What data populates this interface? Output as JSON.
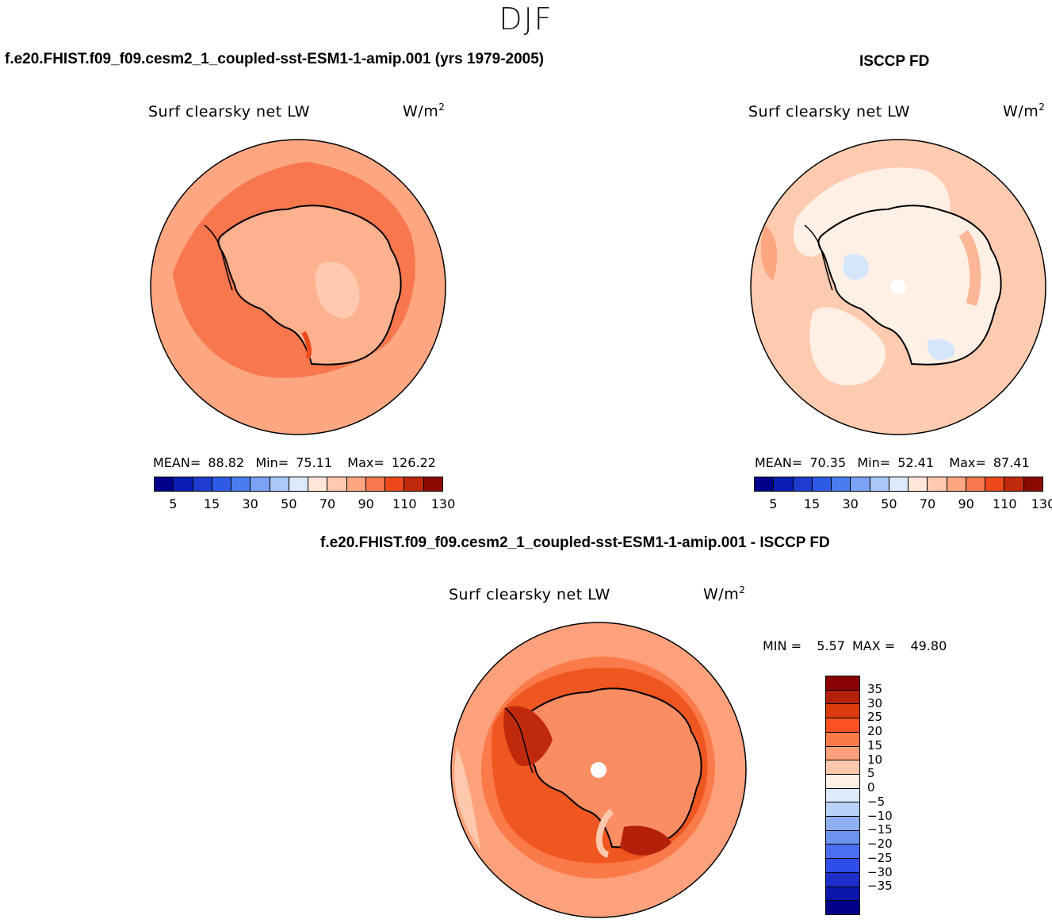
{
  "season": "DJF",
  "panels": {
    "model_title": "f.e20.FHIST.f09_f09.cesm2_1_coupled-sst-ESM1-1-amip.001 (yrs 1979-2005)",
    "obs_title": "ISCCP FD",
    "diff_title": "f.e20.FHIST.f09_f09.cesm2_1_coupled-sst-ESM1-1-amip.001 - ISCCP FD"
  },
  "map_label": "Surf clearsky net LW",
  "units": {
    "base": "W/m",
    "exp": "2"
  },
  "model_stats": {
    "mean_label": "MEAN=",
    "mean": "88.82",
    "min_label": "Min=",
    "min": "75.11",
    "max_label": "Max=",
    "max": "126.22"
  },
  "obs_stats": {
    "mean_label": "MEAN=",
    "mean": "70.35",
    "min_label": "Min=",
    "min": "52.41",
    "max_label": "Max=",
    "max": "87.41"
  },
  "diff_stats": {
    "min_label": "MIN =",
    "min": "5.57",
    "max_label": "MAX =",
    "max": "49.80"
  },
  "abs_colorbar": {
    "colors": [
      "#00008b",
      "#0a1eb4",
      "#1e3ccd",
      "#2e5be6",
      "#4a7cf0",
      "#7aa2f5",
      "#aac8f8",
      "#dbeafb",
      "#ffe8d9",
      "#fec9af",
      "#fca682",
      "#f8774d",
      "#ec4a1d",
      "#c02a0c",
      "#8b0a00"
    ],
    "tick_labels": [
      "5",
      "15",
      "30",
      "50",
      "70",
      "90",
      "110",
      "130"
    ]
  },
  "diff_colorbar": {
    "colors": [
      "#8b0000",
      "#b5200a",
      "#dc3c0c",
      "#fa5223",
      "#fb7a4a",
      "#fca17c",
      "#fdc8ab",
      "#fff0e6",
      "#ddeafb",
      "#b8d1f7",
      "#8fb1f2",
      "#6e93ef",
      "#4a6ff0",
      "#2e4ee8",
      "#1d2fcb",
      "#0a16ac",
      "#00008b"
    ],
    "tick_labels": [
      "35",
      "30",
      "25",
      "20",
      "15",
      "10",
      "5",
      "0",
      "−5",
      "−10",
      "−15",
      "−20",
      "−25",
      "−30",
      "−35"
    ]
  },
  "map_colors": {
    "model_ocean": "#f87a4d",
    "model_land": "#fdb18e",
    "obs_ocean": "#fecbb0",
    "obs_land": "#fff0e6",
    "diff_outer": "#fca17c",
    "diff_inner": "#f0561f",
    "diff_land": "#fb8d62"
  }
}
